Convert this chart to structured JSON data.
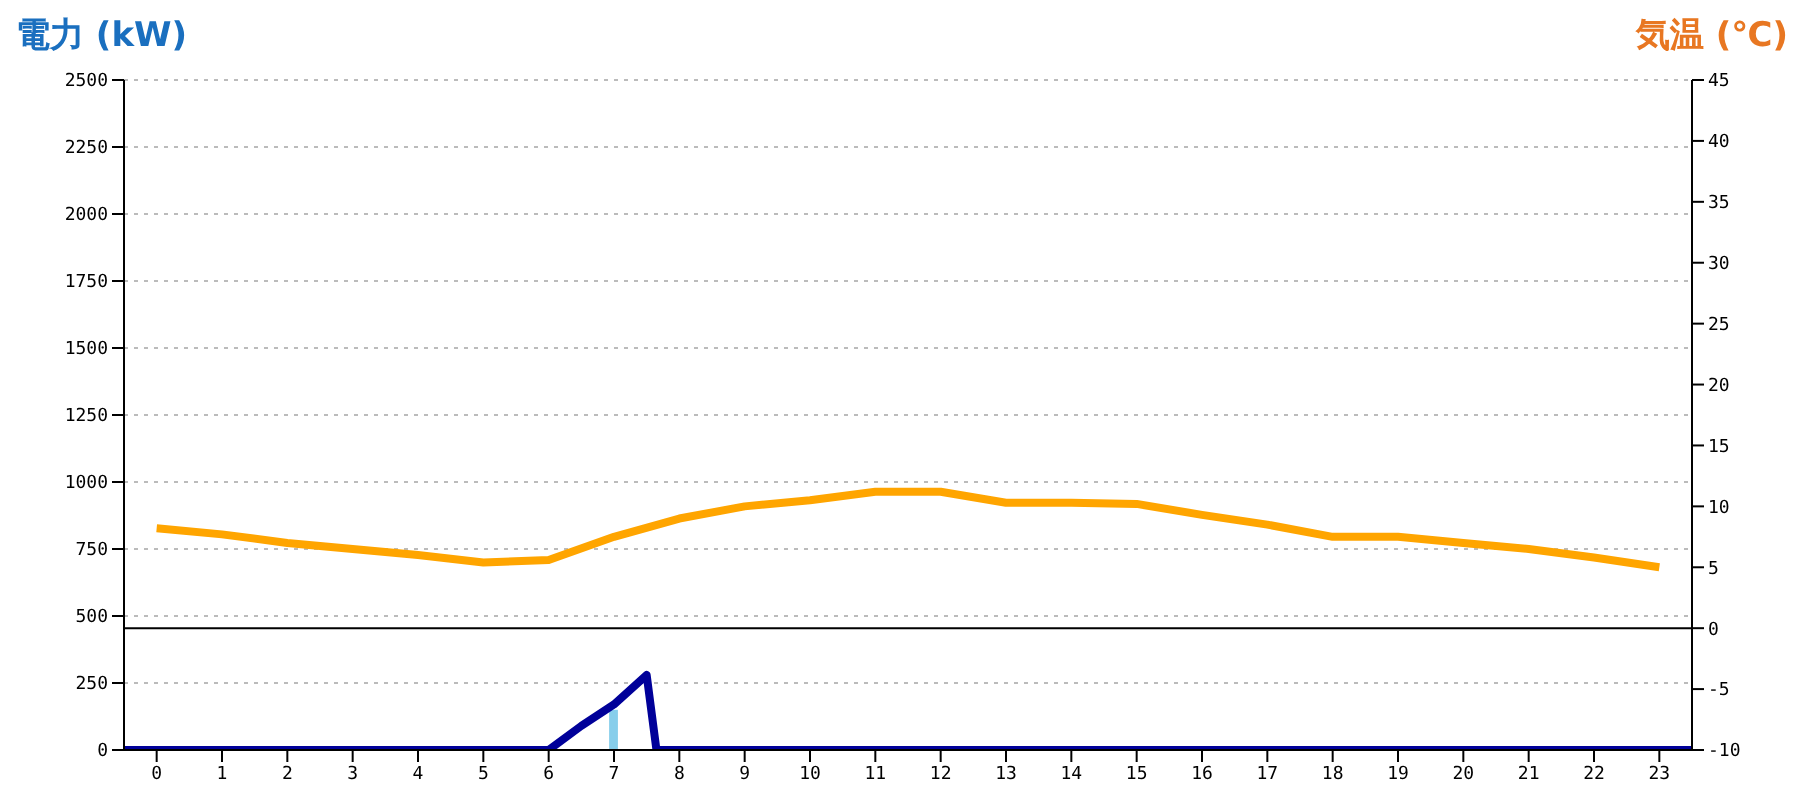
{
  "chart_data": {
    "type": "bar",
    "ylabel": "電力 (kW)",
    "y2label": "気温 (℃)",
    "x": [
      0,
      1,
      2,
      3,
      4,
      5,
      6,
      7,
      8,
      9,
      10,
      11,
      12,
      13,
      14,
      15,
      16,
      17,
      18,
      19,
      20,
      21,
      22,
      23
    ],
    "xlim": [
      -0.5,
      23.5
    ],
    "xticks": [
      0,
      1,
      2,
      3,
      4,
      5,
      6,
      7,
      8,
      9,
      10,
      11,
      12,
      13,
      14,
      15,
      16,
      17,
      18,
      19,
      20,
      21,
      22,
      23
    ],
    "series": [
      {
        "color": "#87ceeb",
        "values": [
          0,
          0,
          0,
          0,
          0,
          0,
          0,
          150,
          0,
          0,
          0,
          0,
          0,
          0,
          0,
          0,
          0,
          0,
          0,
          0,
          0,
          0,
          0,
          0
        ]
      },
      {
        "type": "line",
        "color": "#000099",
        "x": [
          -0.5,
          6,
          6.5,
          7,
          7.5,
          7.65,
          23.5
        ],
        "values": [
          0,
          0,
          90,
          170,
          280,
          0,
          0
        ]
      },
      {
        "type": "line",
        "axis": "y2",
        "color": "#ffa500",
        "values": [
          8.2,
          7.7,
          7.0,
          6.5,
          6.0,
          5.4,
          5.6,
          7.5,
          9.0,
          10.0,
          10.5,
          11.2,
          11.2,
          10.3,
          10.3,
          10.2,
          9.3,
          8.5,
          7.5,
          7.5,
          7.0,
          6.5,
          5.8,
          5.0
        ]
      }
    ],
    "ylim": [
      0,
      2500
    ],
    "yticks": [
      0,
      250,
      500,
      750,
      1000,
      1250,
      1500,
      1750,
      2000,
      2250,
      2500
    ],
    "y2lim": [
      -10,
      45
    ],
    "y2ticks": [
      -10,
      -5,
      0,
      5,
      10,
      15,
      20,
      25,
      30,
      35,
      40,
      45
    ],
    "ref_lines": [
      {
        "axis": "y2",
        "value": 0,
        "color": "#000000"
      }
    ],
    "grid": "y",
    "legend": false,
    "marker": "none",
    "line_style": "solid"
  }
}
